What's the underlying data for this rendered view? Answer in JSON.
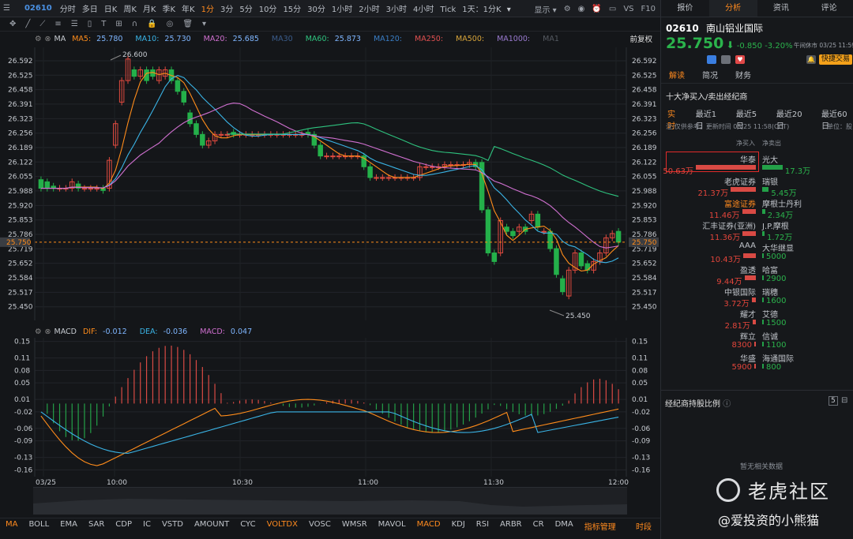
{
  "topbar": {
    "code": "02610",
    "periods": [
      "分时",
      "多日",
      "日K",
      "周K",
      "月K",
      "季K",
      "年K",
      "1分",
      "3分",
      "5分",
      "10分",
      "15分",
      "30分",
      "1小时",
      "2小时",
      "3小时",
      "4小时",
      "Tick",
      "1天：1分K"
    ],
    "active_period": "1分",
    "display_label": "显示",
    "vs_label": "VS",
    "f10_label": "F10"
  },
  "legend_main": {
    "name": "MA",
    "items": [
      {
        "label": "MA5:",
        "value": "25.780",
        "color": "#ff8c1a"
      },
      {
        "label": "MA10:",
        "value": "25.730",
        "color": "#3ab4e6"
      },
      {
        "label": "MA20:",
        "value": "25.685",
        "color": "#d070d0"
      },
      {
        "label": "MA30",
        "value": "",
        "color": "#3a5b8a"
      },
      {
        "label": "MA60:",
        "value": "25.873",
        "color": "#2ec27e"
      },
      {
        "label": "MA120:",
        "value": "",
        "color": "#3a7ec6"
      },
      {
        "label": "MA250:",
        "value": "",
        "color": "#e05050"
      },
      {
        "label": "MA500:",
        "value": "",
        "color": "#d7a43a"
      },
      {
        "label": "MA1000:",
        "value": "",
        "color": "#9a7ad0"
      },
      {
        "label": "MA1",
        "value": "",
        "color": "#555a61"
      }
    ],
    "adjust_label": "前复权"
  },
  "legend_macd": {
    "name": "MACD",
    "items": [
      {
        "label": "DIF:",
        "value": "-0.012",
        "color": "#ff8c1a"
      },
      {
        "label": "DEA:",
        "value": "-0.036",
        "color": "#3ab4e6"
      },
      {
        "label": "MACD:",
        "value": "0.047",
        "color": "#d070d0"
      }
    ]
  },
  "price_axis": [
    "26.592",
    "26.525",
    "26.458",
    "26.391",
    "26.323",
    "26.256",
    "26.189",
    "26.122",
    "26.055",
    "25.988",
    "25.920",
    "25.853",
    "25.786",
    "25.719",
    "25.652",
    "25.584",
    "25.517",
    "25.450"
  ],
  "current_price_tag": "25.750",
  "high_label": "26.600",
  "low_label": "25.450",
  "macd_axis": [
    "0.15",
    "0.11",
    "0.08",
    "0.05",
    "0.01",
    "-0.02",
    "-0.06",
    "-0.09",
    "-0.13",
    "-0.16"
  ],
  "time_axis": [
    "03/25",
    "10:00",
    "10:30",
    "11:00",
    "11:30",
    "12:00"
  ],
  "indicators": [
    "MA",
    "BOLL",
    "EMA",
    "SAR",
    "CDP",
    "IC",
    "VSTD",
    "AMOUNT",
    "CYC",
    "VOLTDX",
    "VOSC",
    "WMSR",
    "MAVOL",
    "MACD",
    "KDJ",
    "RSI",
    "ARBR",
    "CR",
    "DMA",
    "指标管理"
  ],
  "indicators_on": [
    "MA",
    "VOLTDX",
    "MACD",
    "指标管理"
  ],
  "time_setting": "时段",
  "right": {
    "tabs": [
      "报价",
      "分析",
      "资讯",
      "评论"
    ],
    "active_tab": "分析",
    "code": "02610",
    "name": "南山铝业国际",
    "price": "25.750",
    "change": "-0.850",
    "change_pct": "-3.20%",
    "time": "午间休市 03/25 11:59",
    "quick_trade": "快捷交易",
    "subtabs": [
      "解读",
      "简况",
      "财务"
    ],
    "active_subtab": "解读",
    "section_title": "十大净买入/卖出经纪商",
    "ranges": [
      "实时",
      "最近1日",
      "最近5日",
      "最近20日",
      "最近60日"
    ],
    "active_range": "实时",
    "note": "注:仅供参考。更新时间 03/25 11:58(CCT)",
    "unit": "单位：股",
    "col_buy": "净买入",
    "col_sell": "净卖出",
    "brokers": [
      {
        "buy": "华泰",
        "buy_val": "50.63万",
        "buy_frac": 1.0,
        "sell": "光大",
        "sell_val": "17.3万",
        "sell_frac": 0.34,
        "highlight": true
      },
      {
        "buy": "老虎证券",
        "buy_val": "21.37万",
        "buy_frac": 0.42,
        "sell": "瑞银",
        "sell_val": "5.45万",
        "sell_frac": 0.11
      },
      {
        "buy": "富途证券",
        "buy_val": "11.46万",
        "buy_frac": 0.23,
        "sell": "摩根士丹利",
        "sell_val": "2.34万",
        "sell_frac": 0.05,
        "buy_orange": true
      },
      {
        "buy": "汇丰证券(亚洲)",
        "buy_val": "11.36万",
        "buy_frac": 0.22,
        "sell": "J.P.摩根",
        "sell_val": "1.72万",
        "sell_frac": 0.04
      },
      {
        "buy": "AAA",
        "buy_val": "10.43万",
        "buy_frac": 0.21,
        "sell": "大华继显",
        "sell_val": "5000",
        "sell_frac": 0.01
      },
      {
        "buy": "盈透",
        "buy_val": "9.44万",
        "buy_frac": 0.19,
        "sell": "哈富",
        "sell_val": "2900",
        "sell_frac": 0.006
      },
      {
        "buy": "中银国际",
        "buy_val": "3.72万",
        "buy_frac": 0.07,
        "sell": "瑞穗",
        "sell_val": "1600",
        "sell_frac": 0.004
      },
      {
        "buy": "耀才",
        "buy_val": "2.81万",
        "buy_frac": 0.055,
        "sell": "艾德",
        "sell_val": "1500",
        "sell_frac": 0.004
      },
      {
        "buy": "辉立",
        "buy_val": "8300",
        "buy_frac": 0.016,
        "sell": "信诚",
        "sell_val": "1100",
        "sell_frac": 0.003
      },
      {
        "buy": "华盛",
        "buy_val": "5900",
        "buy_frac": 0.012,
        "sell": "海通国际",
        "sell_val": "800",
        "sell_frac": 0.002
      }
    ],
    "holding_title": "经纪商持股比例",
    "holding_badge": "5",
    "no_data": "暂无相关数据",
    "watermark": "老虎社区",
    "author": "@爱投资的小熊猫"
  }
}
